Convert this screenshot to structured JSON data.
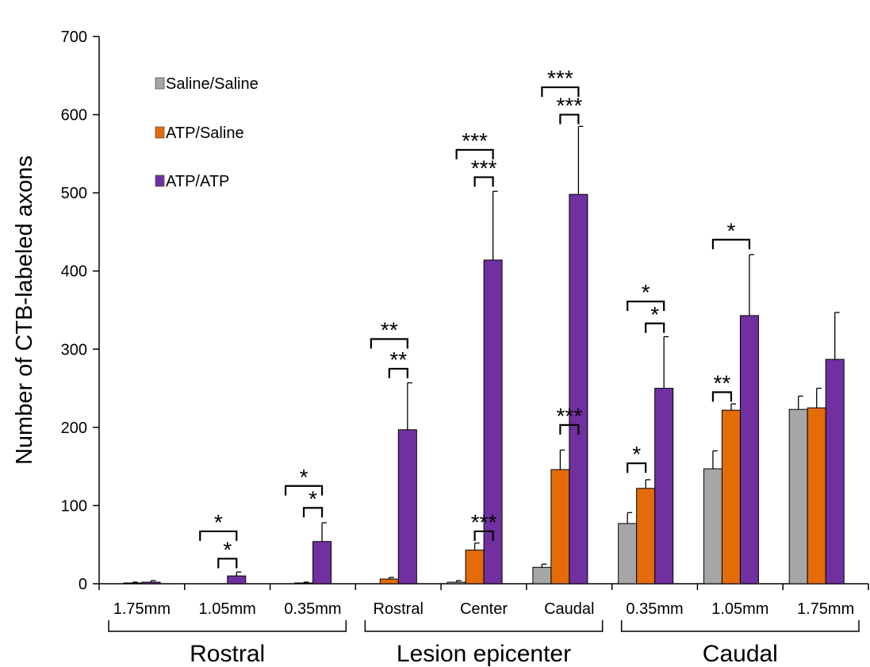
{
  "chart_data": {
    "type": "bar",
    "ylabel": "Number of CTB-labeled axons",
    "ylim": [
      0,
      700
    ],
    "yticks": [
      0,
      100,
      200,
      300,
      400,
      500,
      600,
      700
    ],
    "grid": false,
    "legend_position": "top-left",
    "categories": [
      "1.75mm",
      "1.05mm",
      "0.35mm",
      "Rostral",
      "Center",
      "Caudal",
      "0.35mm",
      "1.05mm",
      "1.75mm"
    ],
    "groups": [
      {
        "label": "Rostral",
        "from": 0,
        "to": 2
      },
      {
        "label": "Lesion epicenter",
        "from": 3,
        "to": 5
      },
      {
        "label": "Caudal",
        "from": 6,
        "to": 8
      }
    ],
    "series": [
      {
        "name": "Saline/Saline",
        "color": "#a6a6a6",
        "values": [
          0,
          0,
          0,
          0,
          2,
          21,
          77,
          147,
          223
        ],
        "errors": [
          0,
          0,
          0,
          0,
          2,
          4,
          14,
          23,
          17
        ]
      },
      {
        "name": "ATP/Saline",
        "color": "#e36c09",
        "values": [
          1,
          0,
          1,
          6,
          43,
          146,
          122,
          222,
          225
        ],
        "errors": [
          1,
          0,
          1,
          2,
          9,
          25,
          11,
          8,
          25
        ]
      },
      {
        "name": "ATP/ATP",
        "color": "#7030a0",
        "values": [
          2,
          10,
          54,
          197,
          414,
          498,
          250,
          343,
          287
        ],
        "errors": [
          2,
          5,
          24,
          60,
          88,
          87,
          66,
          78,
          60
        ]
      }
    ],
    "significance": [
      {
        "cat": 1,
        "from": 0,
        "to": 2,
        "label": "*",
        "y": 67
      },
      {
        "cat": 1,
        "from": 1,
        "to": 2,
        "label": "*",
        "y": 32
      },
      {
        "cat": 2,
        "from": 0,
        "to": 2,
        "label": "*",
        "y": 125
      },
      {
        "cat": 2,
        "from": 1,
        "to": 2,
        "label": "*",
        "y": 97
      },
      {
        "cat": 3,
        "from": 0,
        "to": 2,
        "label": "**",
        "y": 313
      },
      {
        "cat": 3,
        "from": 1,
        "to": 2,
        "label": "**",
        "y": 275
      },
      {
        "cat": 4,
        "from": 1,
        "to": 2,
        "label": "***",
        "y": 67
      },
      {
        "cat": 4,
        "from": 0,
        "to": 2,
        "label": "***",
        "y": 555
      },
      {
        "cat": 4,
        "from": 1,
        "to": 2,
        "label": "***",
        "y": 520
      },
      {
        "cat": 5,
        "from": 1,
        "to": 2,
        "label": "***",
        "y": 203
      },
      {
        "cat": 5,
        "from": 0,
        "to": 2,
        "label": "***",
        "y": 635
      },
      {
        "cat": 5,
        "from": 1,
        "to": 2,
        "label": "***",
        "y": 600
      },
      {
        "cat": 6,
        "from": 0,
        "to": 1,
        "label": "*",
        "y": 154
      },
      {
        "cat": 6,
        "from": 0,
        "to": 2,
        "label": "*",
        "y": 361
      },
      {
        "cat": 6,
        "from": 1,
        "to": 2,
        "label": "*",
        "y": 333
      },
      {
        "cat": 7,
        "from": 0,
        "to": 1,
        "label": "**",
        "y": 245
      },
      {
        "cat": 7,
        "from": 0,
        "to": 2,
        "label": "*",
        "y": 440
      }
    ]
  }
}
